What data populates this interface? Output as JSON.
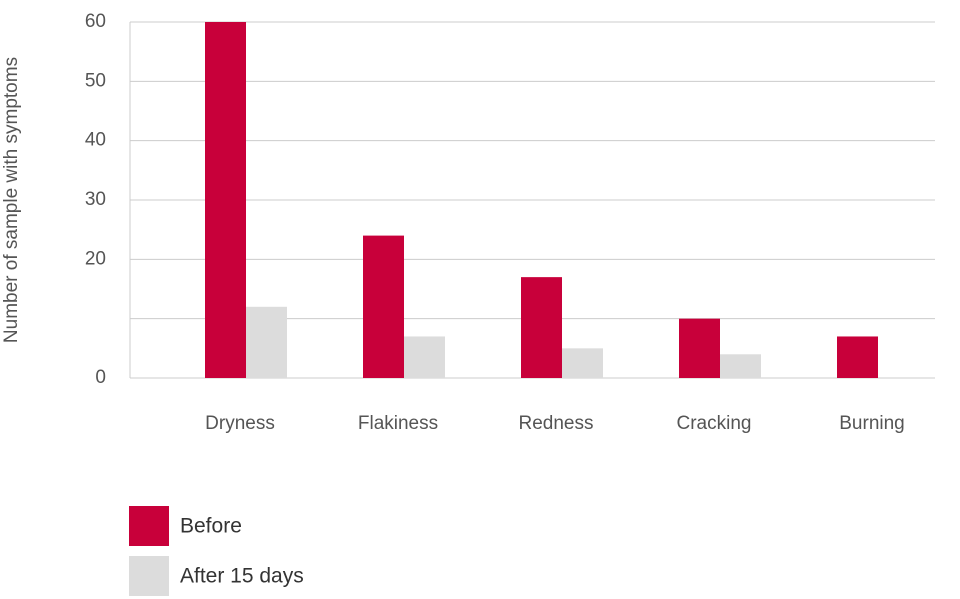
{
  "chart_data": {
    "type": "bar",
    "y_label": "Number of sample with symptoms",
    "categories": [
      "Dryness",
      "Flakiness",
      "Redness",
      "Cracking",
      "Burning"
    ],
    "series": [
      {
        "name": "Before",
        "color": "#c8003a",
        "values": [
          60,
          24,
          17,
          10,
          7
        ]
      },
      {
        "name": "After 15 days",
        "color": "#dcdcdc",
        "values": [
          12,
          7,
          5,
          4,
          0
        ]
      }
    ],
    "ylim": [
      0,
      60
    ],
    "yticks": [
      0,
      {
        "value": 10,
        "label": null
      },
      20,
      30,
      40,
      50,
      60
    ],
    "grid": true
  }
}
